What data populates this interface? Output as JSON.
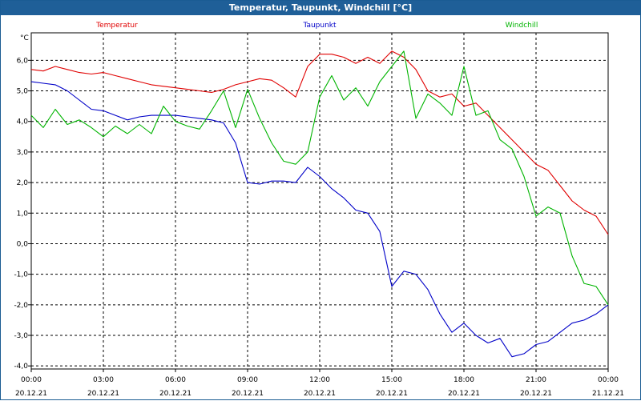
{
  "window": {
    "title": "Temperatur, Taupunkt, Windchill [°C]"
  },
  "chart_data": {
    "type": "line",
    "title": "Temperatur, Taupunkt, Windchill [°C]",
    "ylabel": "°C",
    "ylim": [
      -4.1,
      6.9
    ],
    "yticks": [
      {
        "value": 6,
        "label": "6,0"
      },
      {
        "value": 5,
        "label": "5,0"
      },
      {
        "value": 4,
        "label": "4,0"
      },
      {
        "value": 3,
        "label": "3,0"
      },
      {
        "value": 2,
        "label": "2,0"
      },
      {
        "value": 1,
        "label": "1,0"
      },
      {
        "value": 0,
        "label": "0,0"
      },
      {
        "value": -1,
        "label": "-1,0"
      },
      {
        "value": -2,
        "label": "-2,0"
      },
      {
        "value": -3,
        "label": "-3,0"
      },
      {
        "value": -4,
        "label": "-4,0"
      }
    ],
    "xlim": [
      "20.12.21 00:00",
      "21.12.21 00:00"
    ],
    "xticks": [
      {
        "time": "00:00",
        "date": "20.12.21"
      },
      {
        "time": "03:00",
        "date": "20.12.21"
      },
      {
        "time": "06:00",
        "date": "20.12.21"
      },
      {
        "time": "09:00",
        "date": "20.12.21"
      },
      {
        "time": "12:00",
        "date": "20.12.21"
      },
      {
        "time": "15:00",
        "date": "20.12.21"
      },
      {
        "time": "18:00",
        "date": "20.12.21"
      },
      {
        "time": "21:00",
        "date": "20.12.21"
      },
      {
        "time": "00:00",
        "date": "21.12.21"
      }
    ],
    "grid": true,
    "legend_position": "top",
    "x_hours": [
      0,
      0.5,
      1,
      1.5,
      2,
      2.5,
      3,
      3.5,
      4,
      4.5,
      5,
      5.5,
      6,
      6.5,
      7,
      7.5,
      8,
      8.5,
      9,
      9.5,
      10,
      10.5,
      11,
      11.5,
      12,
      12.5,
      13,
      13.5,
      14,
      14.5,
      15,
      15.5,
      16,
      16.5,
      17,
      17.5,
      18,
      18.5,
      19,
      19.5,
      20,
      20.5,
      21,
      21.5,
      22,
      22.5,
      23,
      23.5,
      24
    ],
    "series": [
      {
        "name": "Temperatur",
        "color": "#e00000",
        "values": [
          5.7,
          5.65,
          5.8,
          5.7,
          5.6,
          5.55,
          5.6,
          5.5,
          5.4,
          5.3,
          5.2,
          5.15,
          5.1,
          5.05,
          5.0,
          4.95,
          5.05,
          5.2,
          5.3,
          5.4,
          5.35,
          5.1,
          4.8,
          5.8,
          6.2,
          6.2,
          6.1,
          5.9,
          6.1,
          5.9,
          6.3,
          6.1,
          5.7,
          5.0,
          4.8,
          4.9,
          4.5,
          4.6,
          4.2,
          3.8,
          3.4,
          3.0,
          2.6,
          2.4,
          1.9,
          1.4,
          1.1,
          0.9,
          0.3
        ]
      },
      {
        "name": "Taupunkt",
        "color": "#0000c8",
        "values": [
          5.3,
          5.25,
          5.2,
          5.0,
          4.7,
          4.4,
          4.35,
          4.2,
          4.05,
          4.15,
          4.2,
          4.2,
          4.2,
          4.15,
          4.1,
          4.05,
          3.95,
          3.3,
          2.0,
          1.95,
          2.05,
          2.05,
          2.0,
          2.5,
          2.2,
          1.8,
          1.5,
          1.1,
          1.0,
          0.4,
          -1.4,
          -0.9,
          -1.0,
          -1.5,
          -2.3,
          -2.9,
          -2.6,
          -3.0,
          -3.25,
          -3.1,
          -3.7,
          -3.6,
          -3.3,
          -3.2,
          -2.9,
          -2.6,
          -2.5,
          -2.3,
          -2.0
        ]
      },
      {
        "name": "Windchill",
        "color": "#00b400",
        "values": [
          4.2,
          3.8,
          4.4,
          3.9,
          4.05,
          3.8,
          3.5,
          3.85,
          3.6,
          3.9,
          3.6,
          4.5,
          4.0,
          3.85,
          3.75,
          4.35,
          5.0,
          3.8,
          5.05,
          4.1,
          3.3,
          2.7,
          2.6,
          3.0,
          4.8,
          5.5,
          4.7,
          5.1,
          4.5,
          5.3,
          5.8,
          6.3,
          4.1,
          4.9,
          4.6,
          4.2,
          5.8,
          4.2,
          4.35,
          3.4,
          3.1,
          2.2,
          0.9,
          1.2,
          1.0,
          -0.4,
          -1.3,
          -1.4,
          -2.0
        ]
      }
    ]
  }
}
